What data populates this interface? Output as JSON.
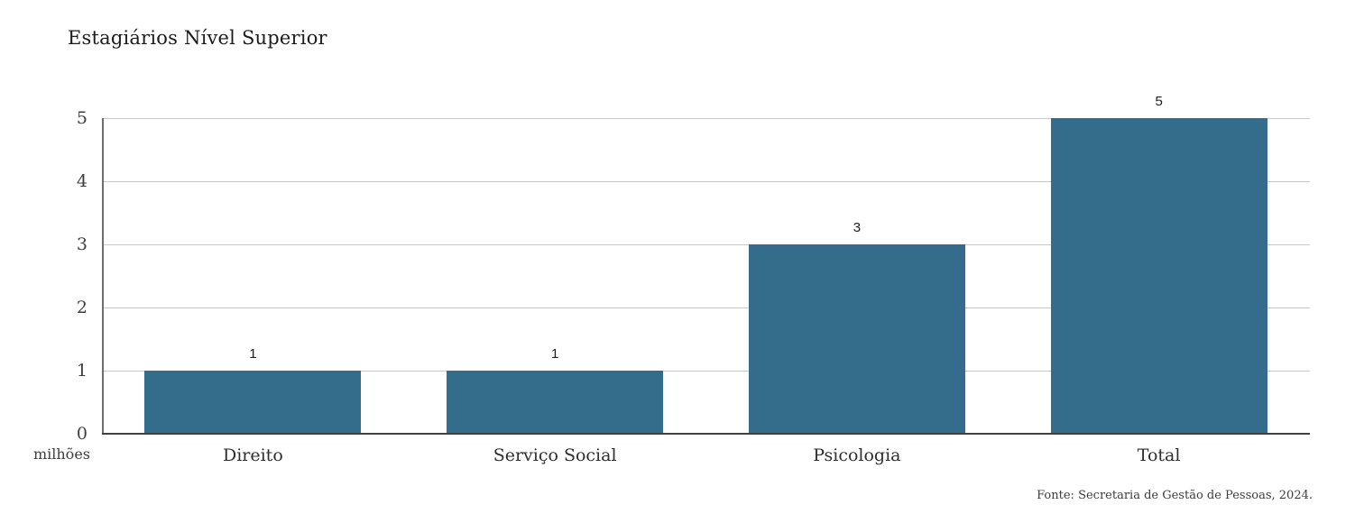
{
  "chart_data": {
    "type": "bar",
    "title": "Estagiários Nível Superior",
    "categories": [
      "Direito",
      "Serviço Social",
      "Psicologia",
      "Total"
    ],
    "values": [
      1,
      1,
      3,
      5
    ],
    "data_labels": [
      "1",
      "1",
      "3",
      "5"
    ],
    "xlabel": "",
    "ylabel": "",
    "y_unit_label": "milhões",
    "yticks": [
      0,
      1,
      2,
      3,
      4,
      5
    ],
    "ylim": [
      0,
      5
    ],
    "grid": "horizontal",
    "legend_position": "none",
    "source": "Fonte: Secretaria de Gestão de Pessoas, 2024."
  },
  "colors": {
    "bar": "#346d8c",
    "gridline": "#c8c8c8",
    "axis_left": "#6e6e6e",
    "axis_bottom": "#3f3f3f",
    "title_text": "#1c1c1c",
    "tick_text": "#3f3f3f",
    "category_text": "#2e2e2e",
    "value_label_text": "#1c1c1c",
    "source_text": "#3d3d3d",
    "background": "#ffffff"
  }
}
